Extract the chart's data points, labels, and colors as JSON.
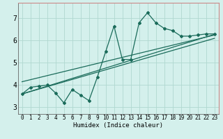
{
  "title": "",
  "xlabel": "Humidex (Indice chaleur)",
  "bg_color": "#d4f0ec",
  "grid_color": "#b0d8d0",
  "line_color": "#1a6b5a",
  "spine_color_tb": "#cc8888",
  "spine_color_lr": "#888888",
  "xlim": [
    -0.5,
    23.5
  ],
  "ylim": [
    2.7,
    7.7
  ],
  "yticks": [
    3,
    4,
    5,
    6,
    7
  ],
  "xticks": [
    0,
    1,
    2,
    3,
    4,
    5,
    6,
    7,
    8,
    9,
    10,
    11,
    12,
    13,
    14,
    15,
    16,
    17,
    18,
    19,
    20,
    21,
    22,
    23
  ],
  "data_x": [
    0,
    1,
    2,
    3,
    4,
    5,
    6,
    7,
    8,
    9,
    10,
    11,
    12,
    13,
    14,
    15,
    16,
    17,
    18,
    19,
    20,
    21,
    22,
    23
  ],
  "data_y": [
    3.6,
    3.9,
    3.95,
    4.0,
    3.65,
    3.2,
    3.8,
    3.55,
    3.3,
    4.35,
    5.5,
    6.65,
    5.15,
    5.15,
    6.8,
    7.25,
    6.8,
    6.55,
    6.45,
    6.2,
    6.2,
    6.25,
    6.3,
    6.3
  ],
  "reg_lines": [
    {
      "x0": 0,
      "y0": 3.6,
      "x1": 23,
      "y1": 6.28
    },
    {
      "x0": 0,
      "y0": 3.6,
      "x1": 23,
      "y1": 6.1
    },
    {
      "x0": 0,
      "y0": 4.15,
      "x1": 23,
      "y1": 6.25
    }
  ]
}
